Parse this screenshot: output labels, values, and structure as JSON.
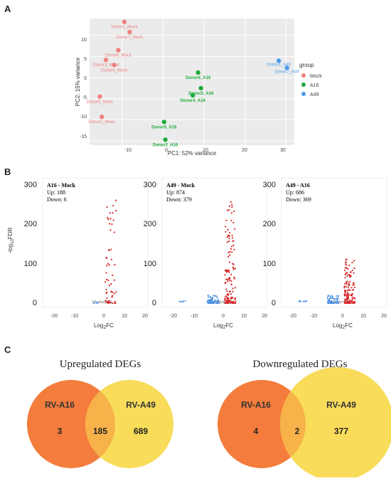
{
  "panel_labels": {
    "a": "A",
    "b": "B",
    "c": "C"
  },
  "colors": {
    "mock": "#f08080",
    "a16": "#1faa3c",
    "a49": "#4a9be6",
    "up": "#d62728",
    "down": "#4a90e2",
    "ns": "#bfbfbf",
    "left_circle": "#f47c3c",
    "right_circle": "#f8dc5a",
    "overlap": "#f7b24a"
  },
  "pca": {
    "xlabel": "PC1: 52% variance",
    "ylabel": "PC2: 15% variance",
    "xticks": [
      "-10",
      "0",
      "10",
      "20",
      "30"
    ],
    "yticks": [
      "10",
      "5",
      "0",
      "-5",
      "-10",
      "-15"
    ],
    "legend_title": "group",
    "legend_items": [
      {
        "label": "Mock",
        "color": "#f08080"
      },
      {
        "label": "A16",
        "color": "#1faa3c"
      },
      {
        "label": "A49",
        "color": "#4a9be6"
      }
    ]
  },
  "chart_data": [
    {
      "type": "scatter",
      "title": "",
      "xlabel": "PC1: 52% variance",
      "ylabel": "PC2: 15% variance",
      "xlim": [
        -18,
        32
      ],
      "ylim": [
        -16,
        14
      ],
      "legend": "right",
      "series": [
        {
          "name": "Mock",
          "points": [
            {
              "label": "Donor1_Mock",
              "x": -9.5,
              "y": 13.2
            },
            {
              "label": "Donor7_Mock",
              "x": -8.2,
              "y": 10.8
            },
            {
              "label": "Donor6_Mock",
              "x": -11,
              "y": 6.5
            },
            {
              "label": "Donor3_Mock",
              "x": -14,
              "y": 4.2
            },
            {
              "label": "Donor4_Mock",
              "x": -12,
              "y": 3.0
            },
            {
              "label": "Donor5_Mock",
              "x": -15.5,
              "y": -4.5
            },
            {
              "label": "Donor2_Mock",
              "x": -15,
              "y": -9.3
            }
          ]
        },
        {
          "name": "A16",
          "points": [
            {
              "label": "Donor6_A16",
              "x": 8.5,
              "y": 1.2
            },
            {
              "label": "Donor3_A16",
              "x": 9.2,
              "y": -2.5
            },
            {
              "label": "Donor4_A16",
              "x": 7.2,
              "y": -4.2
            },
            {
              "label": "Donor5_A16",
              "x": 0.2,
              "y": -10.5
            },
            {
              "label": "Donor2_A16",
              "x": 0.5,
              "y": -14.7
            }
          ]
        },
        {
          "name": "A49",
          "points": [
            {
              "label": "Donor1_A49",
              "x": 28.2,
              "y": 4.0
            },
            {
              "label": "Donor7_A49",
              "x": 30.2,
              "y": 2.3
            }
          ]
        }
      ]
    },
    {
      "type": "scatter",
      "title": "A16 - Mock",
      "xlabel": "Log2FC",
      "ylabel": "-log10FDR",
      "xlim": [
        -25,
        22
      ],
      "ylim": [
        0,
        300
      ],
      "up": 188,
      "down": 6
    },
    {
      "type": "scatter",
      "title": "A49 - Mock",
      "xlabel": "Log2FC",
      "ylabel": "",
      "xlim": [
        -25,
        22
      ],
      "ylim": [
        0,
        300
      ],
      "up": 874,
      "down": 379
    },
    {
      "type": "scatter",
      "title": "A49 - A16",
      "xlabel": "Log2FC",
      "ylabel": "",
      "xlim": [
        -25,
        22
      ],
      "ylim": [
        0,
        300
      ],
      "up": 686,
      "down": 369
    }
  ],
  "volcano": {
    "ylabel_main": "-log",
    "ylabel_sub": "10",
    "ylabel_tail": "FDR",
    "xlabel_main": "Log",
    "xlabel_sub": "2",
    "xlabel_tail": "FC",
    "yticks": [
      "300",
      "200",
      "100",
      "0"
    ],
    "xticks": [
      "-20",
      "-10",
      "0",
      "10",
      "20"
    ],
    "panels": [
      {
        "title": "A16 - Mock",
        "up_text": "Up: 188",
        "down_text": "Down: 6"
      },
      {
        "title": "A49 - Mock",
        "up_text": "Up: 874",
        "down_text": "Down: 379"
      },
      {
        "title": "A49 - A16",
        "up_text": "Up: 686",
        "down_text": "Down: 369"
      }
    ]
  },
  "venn": [
    {
      "title": "Upregulated DEGs",
      "left_label": "RV-A16",
      "right_label": "RV-A49",
      "left_only": "3",
      "overlap": "185",
      "right_only": "689"
    },
    {
      "title": "Downregulated DEGs",
      "left_label": "RV-A16",
      "right_label": "RV-A49",
      "left_only": "4",
      "overlap": "2",
      "right_only": "377"
    }
  ]
}
